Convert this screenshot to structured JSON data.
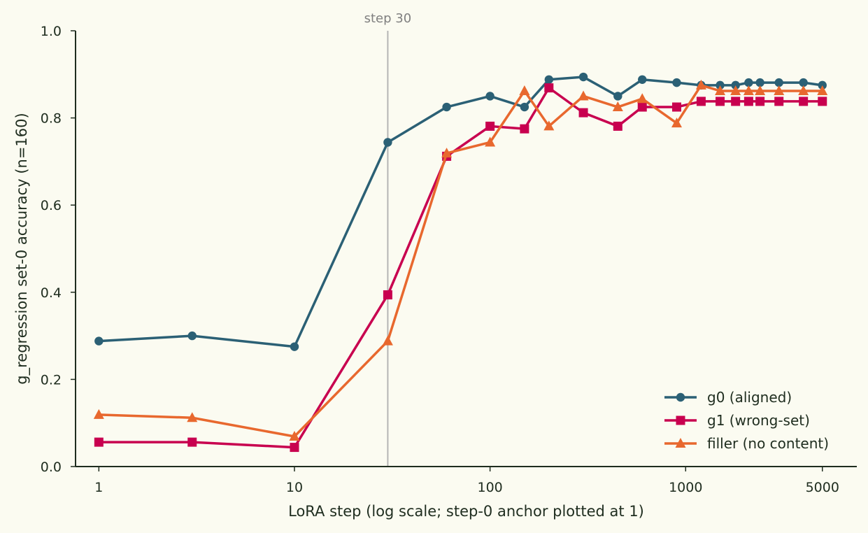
{
  "chart_data": {
    "type": "line",
    "title": "",
    "xlabel": "LoRA step (log scale; step-0 anchor plotted at 1)",
    "ylabel": "g_regression set-0 accuracy (n=160)",
    "x_scale": "log",
    "xlim": [
      0.76,
      7500
    ],
    "ylim": [
      0.0,
      1.0
    ],
    "x_ticks": [
      1,
      10,
      100,
      1000,
      5000
    ],
    "x_tick_labels": [
      "1",
      "10",
      "100",
      "1000",
      "5000"
    ],
    "y_ticks": [
      0.0,
      0.2,
      0.4,
      0.6,
      0.8,
      1.0
    ],
    "y_tick_labels": [
      "0.0",
      "0.2",
      "0.4",
      "0.6",
      "0.8",
      "1.0"
    ],
    "grid": false,
    "legend_position": "bottom-right",
    "reference_line": {
      "x": 30,
      "label": "step 30",
      "color": "#b5b5b5"
    },
    "series": [
      {
        "name": "g0 (aligned)",
        "color": "#2b6075",
        "marker": "circle",
        "x": [
          1,
          3,
          10,
          30,
          60,
          100,
          150,
          200,
          300,
          450,
          600,
          900,
          1200,
          1500,
          1800,
          2100,
          2400,
          3000,
          4000,
          5000
        ],
        "y": [
          0.288,
          0.3,
          0.275,
          0.744,
          0.825,
          0.85,
          0.825,
          0.888,
          0.894,
          0.85,
          0.888,
          0.881,
          0.875,
          0.875,
          0.875,
          0.881,
          0.881,
          0.881,
          0.881,
          0.875
        ]
      },
      {
        "name": "g1 (wrong-set)",
        "color": "#c8004f",
        "marker": "square",
        "x": [
          1,
          3,
          10,
          30,
          60,
          100,
          150,
          200,
          300,
          450,
          600,
          900,
          1200,
          1500,
          1800,
          2100,
          2400,
          3000,
          4000,
          5000
        ],
        "y": [
          0.056,
          0.056,
          0.044,
          0.394,
          0.712,
          0.781,
          0.775,
          0.869,
          0.812,
          0.781,
          0.825,
          0.825,
          0.838,
          0.838,
          0.838,
          0.838,
          0.838,
          0.838,
          0.838,
          0.838
        ]
      },
      {
        "name": "filler (no content)",
        "color": "#e8682e",
        "marker": "triangle",
        "x": [
          1,
          3,
          10,
          30,
          60,
          100,
          150,
          200,
          300,
          450,
          600,
          900,
          1200,
          1500,
          1800,
          2100,
          2400,
          3000,
          4000,
          5000
        ],
        "y": [
          0.119,
          0.112,
          0.069,
          0.288,
          0.719,
          0.744,
          0.862,
          0.781,
          0.85,
          0.825,
          0.844,
          0.788,
          0.875,
          0.862,
          0.862,
          0.862,
          0.862,
          0.862,
          0.862,
          0.862
        ]
      }
    ]
  }
}
